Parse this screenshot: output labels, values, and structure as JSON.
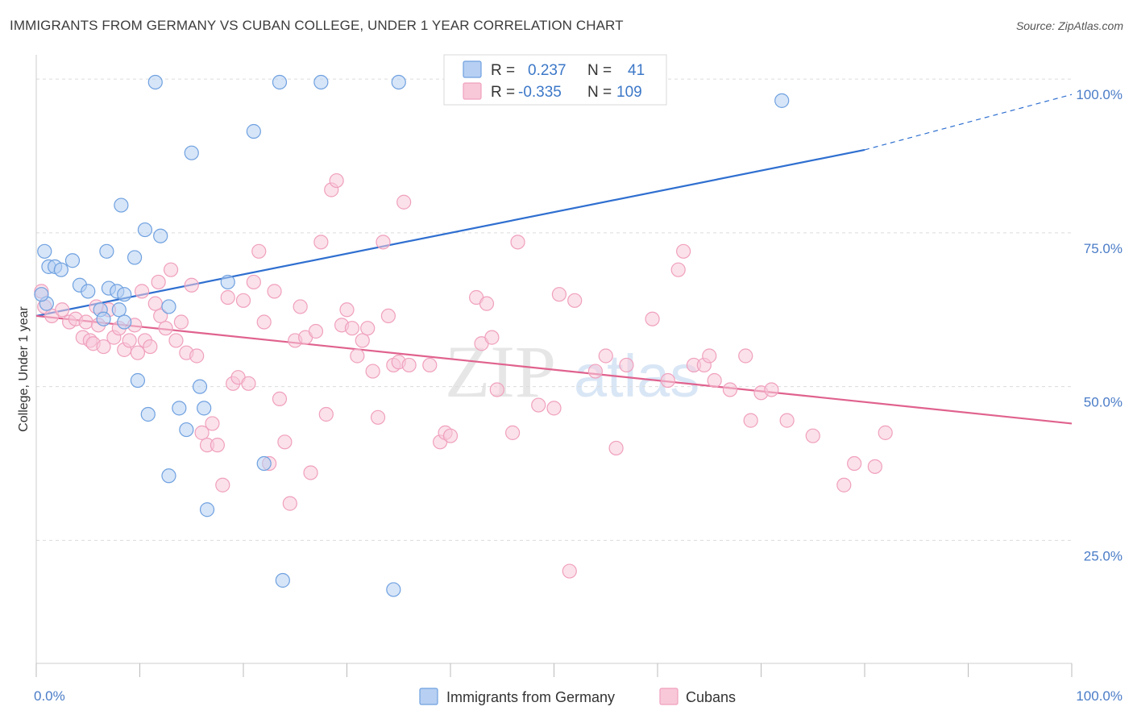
{
  "title": "IMMIGRANTS FROM GERMANY VS CUBAN COLLEGE, UNDER 1 YEAR CORRELATION CHART",
  "source": "Source: ZipAtlas.com",
  "watermark": {
    "zip": "ZIP",
    "atlas": "atlas"
  },
  "stats": {
    "r_label": "R =",
    "n_label": "N =",
    "germany": {
      "r": "0.237",
      "n": "41",
      "color": "#6fa1e0"
    },
    "cubans": {
      "r": "-0.335",
      "n": "109",
      "color": "#f0a0bd"
    }
  },
  "chart_data": {
    "type": "scatter",
    "title": "IMMIGRANTS FROM GERMANY VS CUBAN COLLEGE, UNDER 1 YEAR CORRELATION CHART",
    "xlabel": "",
    "ylabel": "College, Under 1 year",
    "xlim": [
      0,
      100
    ],
    "ylim": [
      5,
      105
    ],
    "x_tick_labels": [
      "0.0%",
      "100.0%"
    ],
    "y_tick_labels": [
      "100.0%",
      "75.0%",
      "50.0%",
      "25.0%"
    ],
    "y_ticks": [
      100,
      75,
      50,
      25
    ],
    "grid": true,
    "legend": [
      "Immigrants from Germany",
      "Cubans"
    ],
    "series": [
      {
        "name": "Immigrants from Germany",
        "color": "#6fa1e0",
        "fill": "#b7cff2",
        "trend": {
          "x0": 0,
          "y0": 61.5,
          "x1": 80,
          "y1": 88.5,
          "dash_x1": 100,
          "dash_y1": 97.5,
          "color": "#2f6fd0"
        },
        "points": [
          [
            0.8,
            72
          ],
          [
            1.0,
            63.5
          ],
          [
            1.2,
            69.5
          ],
          [
            1.8,
            69.5
          ],
          [
            2.4,
            69.0
          ],
          [
            3.5,
            70.5
          ],
          [
            4.2,
            66.5
          ],
          [
            5.0,
            65.5
          ],
          [
            6.2,
            62.5
          ],
          [
            6.5,
            61.0
          ],
          [
            7.0,
            66.0
          ],
          [
            6.8,
            72.0
          ],
          [
            8.0,
            62.5
          ],
          [
            8.2,
            79.5
          ],
          [
            7.8,
            65.5
          ],
          [
            8.5,
            65.0
          ],
          [
            8.5,
            60.5
          ],
          [
            9.5,
            71.0
          ],
          [
            9.8,
            51.0
          ],
          [
            10.5,
            75.5
          ],
          [
            10.8,
            45.5
          ],
          [
            11.5,
            99.5
          ],
          [
            12.0,
            74.5
          ],
          [
            12.8,
            35.5
          ],
          [
            12.8,
            63.0
          ],
          [
            13.8,
            46.5
          ],
          [
            14.5,
            43.0
          ],
          [
            15.0,
            88.0
          ],
          [
            15.8,
            50.0
          ],
          [
            16.2,
            46.5
          ],
          [
            16.5,
            30.0
          ],
          [
            18.5,
            67.0
          ],
          [
            21.0,
            91.5
          ],
          [
            22.0,
            37.5
          ],
          [
            23.5,
            99.5
          ],
          [
            23.8,
            18.5
          ],
          [
            27.5,
            99.5
          ],
          [
            34.5,
            17.0
          ],
          [
            35.0,
            99.5
          ],
          [
            72.0,
            96.5
          ],
          [
            0.5,
            65.0
          ]
        ]
      },
      {
        "name": "Cubans",
        "color": "#f0a0bd",
        "fill": "#f8c8d8",
        "trend": {
          "x0": 0,
          "y0": 61.5,
          "x1": 100,
          "y1": 44.0,
          "color": "#e0628e"
        },
        "points": [
          [
            0.5,
            65.5
          ],
          [
            0.8,
            63.0
          ],
          [
            1.5,
            61.5
          ],
          [
            2.5,
            62.5
          ],
          [
            3.2,
            60.5
          ],
          [
            3.8,
            61.0
          ],
          [
            4.5,
            58.0
          ],
          [
            4.8,
            60.5
          ],
          [
            5.2,
            57.5
          ],
          [
            5.5,
            57.0
          ],
          [
            5.8,
            63.0
          ],
          [
            6.0,
            60.0
          ],
          [
            6.5,
            56.5
          ],
          [
            7.0,
            62.5
          ],
          [
            7.5,
            58.0
          ],
          [
            8.0,
            59.5
          ],
          [
            8.5,
            56.0
          ],
          [
            9.0,
            57.5
          ],
          [
            9.5,
            60.0
          ],
          [
            9.8,
            55.5
          ],
          [
            10.2,
            65.5
          ],
          [
            10.5,
            57.5
          ],
          [
            11.0,
            56.5
          ],
          [
            11.5,
            63.5
          ],
          [
            11.8,
            67.0
          ],
          [
            12.0,
            61.5
          ],
          [
            12.5,
            59.5
          ],
          [
            13.0,
            69.0
          ],
          [
            13.5,
            57.5
          ],
          [
            14.0,
            60.5
          ],
          [
            14.5,
            55.5
          ],
          [
            15.0,
            66.5
          ],
          [
            15.5,
            55.0
          ],
          [
            16.0,
            42.5
          ],
          [
            16.5,
            40.5
          ],
          [
            17.0,
            44.0
          ],
          [
            17.5,
            40.5
          ],
          [
            18.0,
            34.0
          ],
          [
            18.5,
            64.5
          ],
          [
            19.0,
            50.5
          ],
          [
            19.5,
            51.5
          ],
          [
            20.0,
            64.0
          ],
          [
            20.5,
            50.5
          ],
          [
            21.0,
            67.0
          ],
          [
            21.5,
            72.0
          ],
          [
            22.0,
            60.5
          ],
          [
            22.5,
            37.5
          ],
          [
            23.0,
            65.5
          ],
          [
            23.5,
            48.0
          ],
          [
            24.0,
            41.0
          ],
          [
            24.5,
            31.0
          ],
          [
            25.0,
            57.5
          ],
          [
            25.5,
            63.0
          ],
          [
            26.0,
            58.0
          ],
          [
            26.5,
            36.0
          ],
          [
            27.0,
            59.0
          ],
          [
            27.5,
            73.5
          ],
          [
            28.0,
            45.5
          ],
          [
            28.5,
            82.0
          ],
          [
            29.0,
            83.5
          ],
          [
            29.5,
            60.0
          ],
          [
            30.0,
            62.5
          ],
          [
            30.5,
            59.5
          ],
          [
            31.0,
            55.0
          ],
          [
            31.5,
            57.5
          ],
          [
            32.0,
            59.5
          ],
          [
            32.5,
            52.5
          ],
          [
            33.0,
            45.0
          ],
          [
            33.5,
            73.5
          ],
          [
            34.0,
            61.5
          ],
          [
            34.5,
            53.5
          ],
          [
            35.0,
            54.0
          ],
          [
            35.5,
            80.0
          ],
          [
            36.0,
            53.5
          ],
          [
            38.0,
            53.5
          ],
          [
            39.0,
            41.0
          ],
          [
            39.5,
            42.5
          ],
          [
            40.0,
            42.0
          ],
          [
            42.5,
            64.5
          ],
          [
            43.0,
            57.0
          ],
          [
            43.5,
            63.5
          ],
          [
            44.0,
            58.0
          ],
          [
            44.5,
            49.5
          ],
          [
            46.0,
            42.5
          ],
          [
            46.5,
            73.5
          ],
          [
            48.5,
            47.0
          ],
          [
            50.0,
            46.5
          ],
          [
            50.5,
            65.0
          ],
          [
            51.5,
            20.0
          ],
          [
            52.0,
            64.0
          ],
          [
            54.0,
            52.5
          ],
          [
            55.0,
            55.0
          ],
          [
            56.0,
            40.0
          ],
          [
            57.0,
            53.5
          ],
          [
            59.5,
            61.0
          ],
          [
            61.0,
            51.0
          ],
          [
            62.0,
            69.0
          ],
          [
            62.5,
            72.0
          ],
          [
            63.5,
            53.5
          ],
          [
            64.5,
            53.5
          ],
          [
            65.0,
            55.0
          ],
          [
            65.5,
            51.0
          ],
          [
            67.0,
            49.5
          ],
          [
            68.5,
            55.0
          ],
          [
            69.0,
            44.5
          ],
          [
            70.0,
            49.0
          ],
          [
            71.0,
            49.5
          ],
          [
            72.5,
            44.5
          ],
          [
            75.0,
            42.0
          ],
          [
            78.0,
            34.0
          ],
          [
            79.0,
            37.5
          ],
          [
            81.0,
            37.0
          ],
          [
            82.0,
            42.5
          ]
        ]
      }
    ]
  }
}
